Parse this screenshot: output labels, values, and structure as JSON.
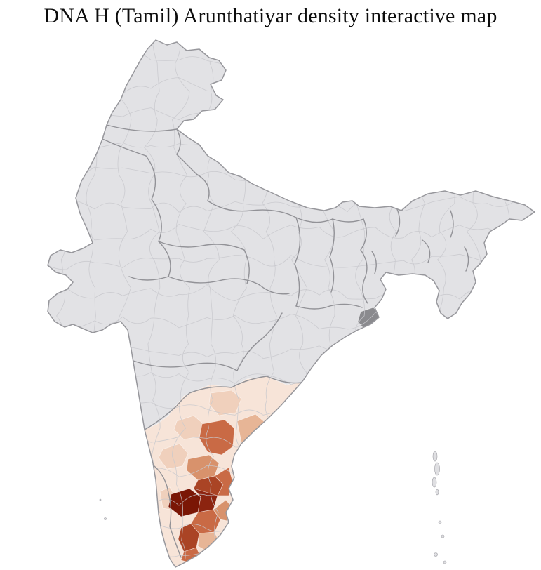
{
  "page": {
    "title": "DNA H (Tamil) Arunthatiyar density interactive map"
  },
  "map": {
    "colors": {
      "background": "#ffffff",
      "land": "#e2e2e5",
      "outline": "#97979c",
      "state_border": "#8d8d92",
      "district_border": "#c9c9cd",
      "density_step_1": "#f7e4d8",
      "density_step_2": "#f0d0bc",
      "density_step_3": "#e7b596",
      "density_step_4": "#d8926c",
      "density_step_5": "#c96a45",
      "density_step_6": "#aa4425",
      "density_step_7": "#8c2410",
      "density_step_8": "#7a1605",
      "neutral_dark_district": "#8a8a8e",
      "island": "#dfdfe2"
    }
  }
}
